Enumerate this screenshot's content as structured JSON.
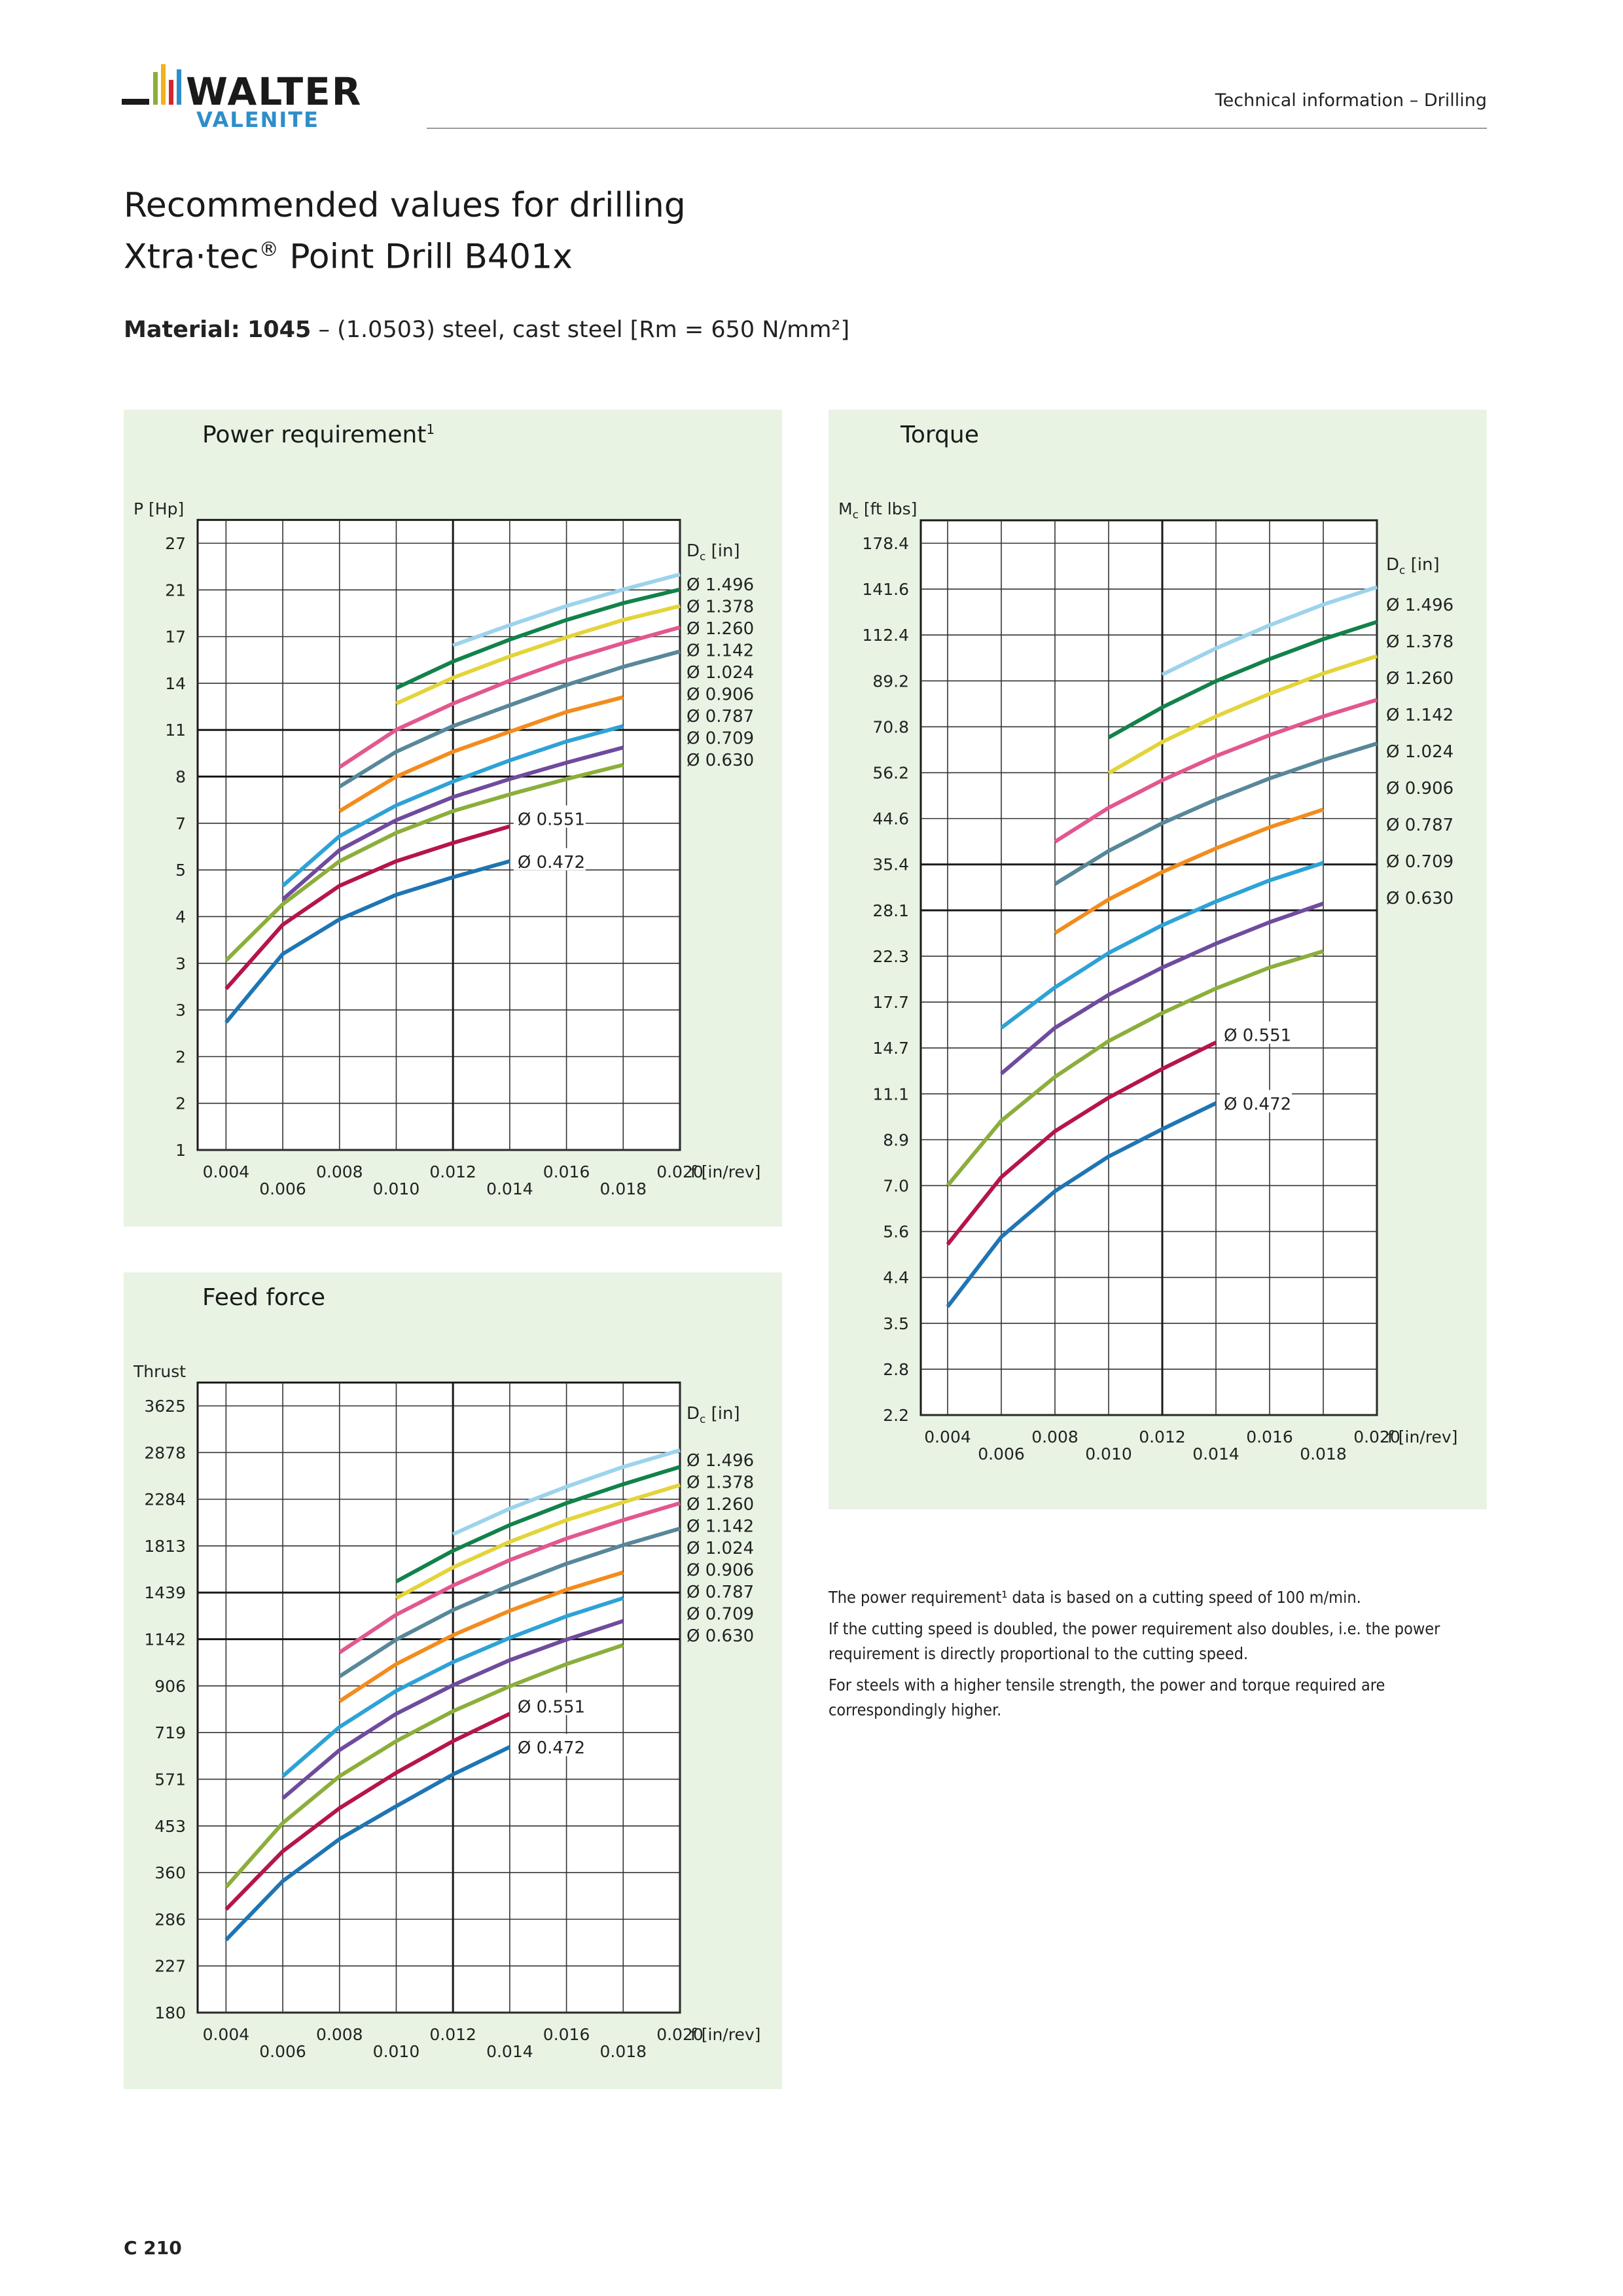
{
  "header": {
    "brand_name": "WALTER",
    "brand_sub": "VALENITE",
    "section": "Technical information – Drilling"
  },
  "title": {
    "line1": "Recommended values for drilling",
    "line2_prefix": "Xtra·tec",
    "line2_reg": "®",
    "line2_suffix": " Point Drill B401x"
  },
  "material": {
    "label": "Material:",
    "code": "1045",
    "desc": "– (1.0503) steel, cast steel [Rm = 650 N/mm²]"
  },
  "colors": {
    "panel_bg": "#e8f3e4",
    "d0472": "#1f75b3",
    "d0551": "#b5154a",
    "d0630": "#8cae3b",
    "d0709": "#6f4b9d",
    "d0787": "#2ea2d6",
    "d0906": "#f28c1e",
    "d1024": "#58879a",
    "d1142": "#e2578f",
    "d1260": "#e3d43a",
    "d1378": "#12824a",
    "d1496": "#9dd3ec"
  },
  "chart_data": [
    {
      "name": "power",
      "type": "line",
      "title": "Power requirement",
      "title_sup": "1",
      "ylabel": "P [Hp]",
      "xlabel": "f [in/rev]",
      "legend_title": "Dc [in]",
      "x_ticks": [
        "0.004",
        "0.006",
        "0.008",
        "0.010",
        "0.012",
        "0.014",
        "0.016",
        "0.018",
        "0.020"
      ],
      "y_tick_labels": [
        "1",
        "2",
        "2",
        "3",
        "3",
        "4",
        "5",
        "7",
        "8",
        "11",
        "14",
        "17",
        "21",
        "27"
      ],
      "xlim": [
        0.004,
        0.02
      ],
      "y_scale": "log",
      "legend_entries": [
        "Ø 1.496",
        "Ø 1.378",
        "Ø 1.260",
        "Ø 1.142",
        "Ø 1.024",
        "Ø 0.906",
        "Ø 0.787",
        "Ø 0.709",
        "Ø 0.630"
      ],
      "inline_labels": [
        {
          "series": "Ø 0.551",
          "text": "Ø 0.551"
        },
        {
          "series": "Ø 0.472",
          "text": "Ø 0.472"
        }
      ],
      "series": [
        {
          "name": "Ø 0.472",
          "color": "d0472",
          "x": [
            0.004,
            0.006,
            0.008,
            0.01,
            0.012,
            0.014
          ],
          "y": [
            2.0,
            2.9,
            3.5,
            4.0,
            4.4,
            4.8
          ]
        },
        {
          "name": "Ø 0.551",
          "color": "d0551",
          "x": [
            0.004,
            0.006,
            0.008,
            0.01,
            0.012,
            0.014
          ],
          "y": [
            2.4,
            3.4,
            4.2,
            4.8,
            5.3,
            5.8
          ]
        },
        {
          "name": "Ø 0.630",
          "color": "d0630",
          "x": [
            0.004,
            0.006,
            0.008,
            0.01,
            0.012,
            0.014,
            0.016,
            0.018
          ],
          "y": [
            2.8,
            3.8,
            4.8,
            5.6,
            6.3,
            6.9,
            7.5,
            8.1
          ]
        },
        {
          "name": "Ø 0.709",
          "color": "d0709",
          "x": [
            0.006,
            0.008,
            0.01,
            0.012,
            0.014,
            0.016,
            0.018
          ],
          "y": [
            3.9,
            5.1,
            6.0,
            6.8,
            7.5,
            8.2,
            8.9
          ]
        },
        {
          "name": "Ø 0.787",
          "color": "d0787",
          "x": [
            0.006,
            0.008,
            0.01,
            0.012,
            0.014,
            0.016,
            0.018
          ],
          "y": [
            4.2,
            5.5,
            6.5,
            7.4,
            8.3,
            9.2,
            10.0
          ]
        },
        {
          "name": "Ø 0.906",
          "color": "d0906",
          "x": [
            0.008,
            0.01,
            0.012,
            0.014,
            0.016,
            0.018
          ],
          "y": [
            6.3,
            7.6,
            8.7,
            9.7,
            10.8,
            11.7
          ]
        },
        {
          "name": "Ø 1.024",
          "color": "d1024",
          "x": [
            0.008,
            0.01,
            0.012,
            0.014,
            0.016,
            0.018,
            0.02
          ],
          "y": [
            7.2,
            8.7,
            10.0,
            11.2,
            12.5,
            13.8,
            15.0
          ]
        },
        {
          "name": "Ø 1.142",
          "color": "d1142",
          "x": [
            0.008,
            0.01,
            0.012,
            0.014,
            0.016,
            0.018,
            0.02
          ],
          "y": [
            8.0,
            9.8,
            11.3,
            12.8,
            14.3,
            15.7,
            17.1
          ]
        },
        {
          "name": "Ø 1.260",
          "color": "d1260",
          "x": [
            0.01,
            0.012,
            0.014,
            0.016,
            0.018,
            0.02
          ],
          "y": [
            11.3,
            13.0,
            14.6,
            16.2,
            17.8,
            19.2
          ]
        },
        {
          "name": "Ø 1.378",
          "color": "d1378",
          "x": [
            0.01,
            0.012,
            0.014,
            0.016,
            0.018,
            0.02
          ],
          "y": [
            12.3,
            14.2,
            16.0,
            17.8,
            19.5,
            21.0
          ]
        },
        {
          "name": "Ø 1.496",
          "color": "d1496",
          "x": [
            0.012,
            0.014,
            0.016,
            0.018,
            0.02
          ],
          "y": [
            15.5,
            17.3,
            19.2,
            21.0,
            22.8
          ]
        }
      ]
    },
    {
      "name": "torque",
      "type": "line",
      "title": "Torque",
      "ylabel_main": "M",
      "ylabel_sub": "c",
      "ylabel_unit": " [ft lbs]",
      "xlabel": "f [in/rev]",
      "legend_title": "Dc [in]",
      "x_ticks": [
        "0.004",
        "0.006",
        "0.008",
        "0.010",
        "0.012",
        "0.014",
        "0.016",
        "0.018",
        "0.020"
      ],
      "y_tick_labels": [
        "2.2",
        "2.8",
        "3.5",
        "4.4",
        "5.6",
        "7.0",
        "8.9",
        "11.1",
        "14.7",
        "17.7",
        "22.3",
        "28.1",
        "35.4",
        "44.6",
        "56.2",
        "70.8",
        "89.2",
        "112.4",
        "141.6",
        "178.4"
      ],
      "xlim": [
        0.004,
        0.02
      ],
      "y_scale": "log",
      "legend_entries": [
        "Ø 1.496",
        "Ø 1.378",
        "Ø 1.260",
        "Ø 1.142",
        "Ø 1.024",
        "Ø 0.906",
        "Ø 0.787",
        "Ø 0.709",
        "Ø 0.630"
      ],
      "inline_labels": [
        {
          "series": "Ø 0.551",
          "text": "Ø 0.551"
        },
        {
          "series": "Ø 0.472",
          "text": "Ø 0.472"
        }
      ],
      "series": [
        {
          "name": "Ø 0.472",
          "color": "d0472",
          "x": [
            0.004,
            0.006,
            0.008,
            0.01,
            0.012,
            0.014
          ],
          "y": [
            3.8,
            5.4,
            6.8,
            8.1,
            9.3,
            10.6
          ]
        },
        {
          "name": "Ø 0.551",
          "color": "d0551",
          "x": [
            0.004,
            0.006,
            0.008,
            0.01,
            0.012,
            0.014
          ],
          "y": [
            5.2,
            7.3,
            9.2,
            10.9,
            12.6,
            14.4
          ]
        },
        {
          "name": "Ø 0.630",
          "color": "d0630",
          "x": [
            0.004,
            0.006,
            0.008,
            0.01,
            0.012,
            0.014,
            0.016,
            0.018
          ],
          "y": [
            7.0,
            9.7,
            12.1,
            14.5,
            16.7,
            18.9,
            21.0,
            22.8
          ]
        },
        {
          "name": "Ø 0.709",
          "color": "d0709",
          "x": [
            0.006,
            0.008,
            0.01,
            0.012,
            0.014,
            0.016,
            0.018
          ],
          "y": [
            12.3,
            15.5,
            18.3,
            21.0,
            23.7,
            26.4,
            29.0
          ]
        },
        {
          "name": "Ø 0.787",
          "color": "d0787",
          "x": [
            0.006,
            0.008,
            0.01,
            0.012,
            0.014,
            0.016,
            0.018
          ],
          "y": [
            15.5,
            19.0,
            22.6,
            26.0,
            29.3,
            32.6,
            35.6
          ]
        },
        {
          "name": "Ø 0.906",
          "color": "d0906",
          "x": [
            0.008,
            0.01,
            0.012,
            0.014,
            0.016,
            0.018
          ],
          "y": [
            25.0,
            29.6,
            34.0,
            38.3,
            42.6,
            46.6
          ]
        },
        {
          "name": "Ø 1.024",
          "color": "d1024",
          "x": [
            0.008,
            0.01,
            0.012,
            0.014,
            0.016,
            0.018,
            0.02
          ],
          "y": [
            32.0,
            37.8,
            43.5,
            49.0,
            54.5,
            59.8,
            65.0
          ]
        },
        {
          "name": "Ø 1.142",
          "color": "d1142",
          "x": [
            0.008,
            0.01,
            0.012,
            0.014,
            0.016,
            0.018,
            0.02
          ],
          "y": [
            39.6,
            47.0,
            54.0,
            61.0,
            67.8,
            74.5,
            81.0
          ]
        },
        {
          "name": "Ø 1.260",
          "color": "d1260",
          "x": [
            0.01,
            0.012,
            0.014,
            0.016,
            0.018,
            0.02
          ],
          "y": [
            56.0,
            65.5,
            74.5,
            83.5,
            92.5,
            101.0
          ]
        },
        {
          "name": "Ø 1.378",
          "color": "d1378",
          "x": [
            0.01,
            0.012,
            0.014,
            0.016,
            0.018,
            0.02
          ],
          "y": [
            67.0,
            78.0,
            89.0,
            99.5,
            110.0,
            120.0
          ]
        },
        {
          "name": "Ø 1.496",
          "color": "d1496",
          "x": [
            0.012,
            0.014,
            0.016,
            0.018,
            0.02
          ],
          "y": [
            92.0,
            105.0,
            118.0,
            131.0,
            143.0
          ]
        }
      ]
    },
    {
      "name": "feed",
      "type": "line",
      "title": "Feed force",
      "ylabel": "Thrust",
      "xlabel": "f [in/rev]",
      "legend_title": "Dc [in]",
      "x_ticks": [
        "0.004",
        "0.006",
        "0.008",
        "0.010",
        "0.012",
        "0.014",
        "0.016",
        "0.018",
        "0.020"
      ],
      "y_tick_labels": [
        "180",
        "227",
        "286",
        "360",
        "453",
        "571",
        "719",
        "906",
        "1142",
        "1439",
        "1813",
        "2284",
        "2878",
        "3625"
      ],
      "xlim": [
        0.004,
        0.02
      ],
      "y_scale": "log",
      "legend_entries": [
        "Ø 1.496",
        "Ø 1.378",
        "Ø 1.260",
        "Ø 1.142",
        "Ø 1.024",
        "Ø 0.906",
        "Ø 0.787",
        "Ø 0.709",
        "Ø 0.630"
      ],
      "inline_labels": [
        {
          "series": "Ø 0.551",
          "text": "Ø 0.551"
        },
        {
          "series": "Ø 0.472",
          "text": "Ø 0.472"
        }
      ],
      "series": [
        {
          "name": "Ø 0.472",
          "color": "d0472",
          "x": [
            0.004,
            0.006,
            0.008,
            0.01,
            0.012,
            0.014
          ],
          "y": [
            258,
            345,
            425,
            500,
            585,
            670
          ]
        },
        {
          "name": "Ø 0.551",
          "color": "d0551",
          "x": [
            0.004,
            0.006,
            0.008,
            0.01,
            0.012,
            0.014
          ],
          "y": [
            300,
            400,
            495,
            590,
            690,
            790
          ]
        },
        {
          "name": "Ø 0.630",
          "color": "d0630",
          "x": [
            0.004,
            0.006,
            0.008,
            0.01,
            0.012,
            0.014,
            0.016,
            0.018
          ],
          "y": [
            335,
            460,
            580,
            690,
            800,
            905,
            1010,
            1110
          ]
        },
        {
          "name": "Ø 0.709",
          "color": "d0709",
          "x": [
            0.006,
            0.008,
            0.01,
            0.012,
            0.014,
            0.016,
            0.018
          ],
          "y": [
            520,
            660,
            790,
            910,
            1030,
            1140,
            1250
          ]
        },
        {
          "name": "Ø 0.787",
          "color": "d0787",
          "x": [
            0.006,
            0.008,
            0.01,
            0.012,
            0.014,
            0.016,
            0.018
          ],
          "y": [
            580,
            740,
            885,
            1020,
            1150,
            1280,
            1400
          ]
        },
        {
          "name": "Ø 0.906",
          "color": "d0906",
          "x": [
            0.008,
            0.01,
            0.012,
            0.014,
            0.016,
            0.018
          ],
          "y": [
            840,
            1010,
            1165,
            1315,
            1460,
            1590
          ]
        },
        {
          "name": "Ø 1.024",
          "color": "d1024",
          "x": [
            0.008,
            0.01,
            0.012,
            0.014,
            0.016,
            0.018,
            0.02
          ],
          "y": [
            950,
            1140,
            1320,
            1490,
            1660,
            1820,
            1975
          ]
        },
        {
          "name": "Ø 1.142",
          "color": "d1142",
          "x": [
            0.008,
            0.01,
            0.012,
            0.014,
            0.016,
            0.018,
            0.02
          ],
          "y": [
            1070,
            1290,
            1490,
            1690,
            1880,
            2060,
            2240
          ]
        },
        {
          "name": "Ø 1.260",
          "color": "d1260",
          "x": [
            0.01,
            0.012,
            0.014,
            0.016,
            0.018,
            0.02
          ],
          "y": [
            1400,
            1630,
            1850,
            2060,
            2250,
            2450
          ]
        },
        {
          "name": "Ø 1.378",
          "color": "d1378",
          "x": [
            0.01,
            0.012,
            0.014,
            0.016,
            0.018,
            0.02
          ],
          "y": [
            1520,
            1770,
            2010,
            2240,
            2460,
            2680
          ]
        },
        {
          "name": "Ø 1.496",
          "color": "d1496",
          "x": [
            0.012,
            0.014,
            0.016,
            0.018,
            0.02
          ],
          "y": [
            1920,
            2180,
            2430,
            2680,
            2910
          ]
        }
      ]
    }
  ],
  "notes": {
    "p1": "The power requirement¹ data is based on a cutting speed  of 100 m/min.",
    "p2": "If the cutting speed is doubled, the power requirement also doubles, i.e. the power requirement is directly proportional to the cutting speed.",
    "p3": "For steels with a higher tensile strength, the power and torque required are correspondingly higher."
  },
  "footer": {
    "page_number": "C 210"
  }
}
